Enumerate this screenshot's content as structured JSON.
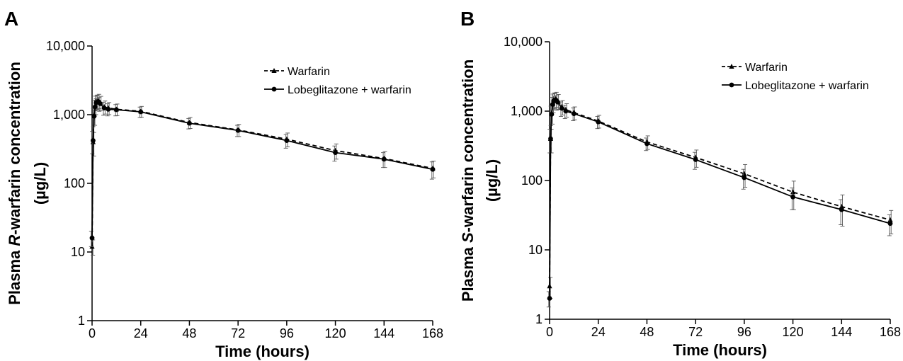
{
  "figure": {
    "panels": [
      {
        "letter": "A",
        "ylabel_line1_prefix": "Plasma ",
        "ylabel_line1_italic": "R",
        "ylabel_line1_suffix": "-warfarin concentration",
        "ylabel_line2": "(µg/L)",
        "xlabel": "Time (hours)"
      },
      {
        "letter": "B",
        "ylabel_line1_prefix": "Plasma ",
        "ylabel_line1_italic": "S",
        "ylabel_line1_suffix": "-warfarin concentration",
        "ylabel_line2": "(µg/L)",
        "xlabel": "Time (hours)"
      }
    ]
  },
  "chart_data": [
    {
      "type": "line",
      "panel": "A",
      "xlabel": "Time (hours)",
      "ylabel": "Plasma R-warfarin concentration (µg/L)",
      "yscale": "log",
      "xlim": [
        0,
        168
      ],
      "ylim": [
        1,
        10000
      ],
      "xticks": [
        0,
        24,
        48,
        72,
        96,
        120,
        144,
        168
      ],
      "xtick_labels": [
        "0",
        "24",
        "48",
        "72",
        "96",
        "120",
        "144",
        "168"
      ],
      "yticks": [
        1,
        10,
        100,
        1000,
        10000
      ],
      "ytick_labels": [
        "1",
        "10",
        "100",
        "1,000",
        "10,000"
      ],
      "legend_position": "top-right",
      "series": [
        {
          "name": "Warfarin",
          "line_style": "dashed",
          "marker": "triangle",
          "x": [
            0,
            0.5,
            1,
            1.5,
            2,
            3,
            4,
            6,
            8,
            12,
            24,
            48,
            72,
            96,
            120,
            144,
            168
          ],
          "y": [
            12,
            400,
            1000,
            1350,
            1550,
            1600,
            1500,
            1300,
            1250,
            1200,
            1120,
            770,
            600,
            440,
            300,
            230,
            165
          ],
          "error": [
            3,
            150,
            300,
            350,
            380,
            380,
            350,
            280,
            250,
            230,
            200,
            140,
            120,
            100,
            75,
            60,
            45
          ]
        },
        {
          "name": "Lobeglitazone + warfarin",
          "line_style": "solid",
          "marker": "circle",
          "x": [
            0,
            0.5,
            1,
            1.5,
            2,
            3,
            4,
            6,
            8,
            12,
            24,
            48,
            72,
            96,
            120,
            144,
            168
          ],
          "y": [
            16,
            420,
            950,
            1300,
            1500,
            1550,
            1450,
            1250,
            1200,
            1180,
            1100,
            750,
            590,
            420,
            280,
            225,
            160
          ],
          "error": [
            4,
            150,
            280,
            330,
            360,
            360,
            330,
            270,
            240,
            220,
            190,
            130,
            110,
            95,
            70,
            55,
            45
          ]
        }
      ]
    },
    {
      "type": "line",
      "panel": "B",
      "xlabel": "Time (hours)",
      "ylabel": "Plasma S-warfarin concentration (µg/L)",
      "yscale": "log",
      "xlim": [
        0,
        168
      ],
      "ylim": [
        1,
        10000
      ],
      "xticks": [
        0,
        24,
        48,
        72,
        96,
        120,
        144,
        168
      ],
      "xtick_labels": [
        "0",
        "24",
        "48",
        "72",
        "96",
        "120",
        "144",
        "168"
      ],
      "yticks": [
        1,
        10,
        100,
        1000,
        10000
      ],
      "ytick_labels": [
        "1",
        "10",
        "100",
        "1,000",
        "10,000"
      ],
      "legend_position": "top-right",
      "series": [
        {
          "name": "Warfarin",
          "line_style": "dashed",
          "marker": "triangle",
          "x": [
            0,
            0.5,
            1,
            1.5,
            2,
            3,
            4,
            6,
            8,
            12,
            24,
            48,
            72,
            96,
            120,
            144,
            168
          ],
          "y": [
            3,
            400,
            950,
            1300,
            1450,
            1500,
            1400,
            1150,
            1050,
            950,
            720,
            360,
            215,
            125,
            68,
            42,
            27
          ],
          "error": [
            1,
            150,
            300,
            350,
            380,
            370,
            340,
            270,
            230,
            200,
            150,
            80,
            60,
            45,
            30,
            20,
            10
          ]
        },
        {
          "name": "Lobeglitazone + warfarin",
          "line_style": "solid",
          "marker": "circle",
          "x": [
            0,
            0.5,
            1,
            1.5,
            2,
            3,
            4,
            6,
            8,
            12,
            24,
            48,
            72,
            96,
            120,
            144,
            168
          ],
          "y": [
            2,
            400,
            900,
            1250,
            1400,
            1450,
            1350,
            1100,
            1000,
            920,
            700,
            340,
            200,
            110,
            58,
            38,
            24
          ],
          "error": [
            0.5,
            150,
            280,
            330,
            360,
            350,
            320,
            260,
            220,
            190,
            140,
            70,
            55,
            35,
            20,
            15,
            8
          ]
        }
      ]
    }
  ]
}
